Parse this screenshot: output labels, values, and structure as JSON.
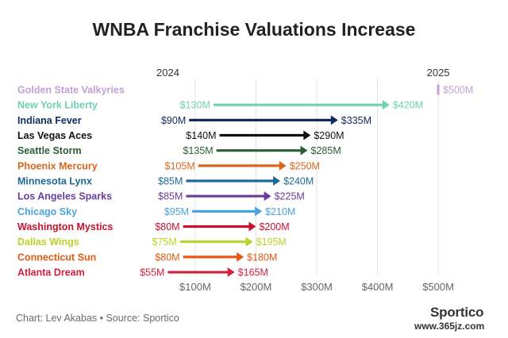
{
  "title": "WNBA Franchise Valuations Increase",
  "credit": "Chart: Lev Akabas • Source: Sportico",
  "brand": "Sportico",
  "watermark": "www.365jz.com",
  "chart_data": {
    "type": "arrow",
    "title": "WNBA Franchise Valuations Increase",
    "x_unit": "$M",
    "xlim": [
      40,
      560
    ],
    "xticks": [
      100,
      200,
      300,
      400,
      500
    ],
    "xtick_labels": [
      "$100M",
      "$200M",
      "$300M",
      "$400M",
      "$500M"
    ],
    "year_labels": [
      {
        "label": "2024",
        "x": 55
      },
      {
        "label": "2025",
        "x": 500
      }
    ],
    "grid": true,
    "series": [
      {
        "team": "Golden State Valkyries",
        "start": null,
        "end": 500,
        "start_label": "",
        "end_label": "$500M",
        "color": "#c39fd6"
      },
      {
        "team": "New York Liberty",
        "start": 130,
        "end": 420,
        "start_label": "$130M",
        "end_label": "$420M",
        "color": "#6fd1b4"
      },
      {
        "team": "Indiana Fever",
        "start": 90,
        "end": 335,
        "start_label": "$90M",
        "end_label": "$335M",
        "color": "#0d2a5c"
      },
      {
        "team": "Las Vegas Aces",
        "start": 140,
        "end": 290,
        "start_label": "$140M",
        "end_label": "$290M",
        "color": "#111111"
      },
      {
        "team": "Seattle Storm",
        "start": 135,
        "end": 285,
        "start_label": "$135M",
        "end_label": "$285M",
        "color": "#2b5e34"
      },
      {
        "team": "Phoenix Mercury",
        "start": 105,
        "end": 250,
        "start_label": "$105M",
        "end_label": "$250M",
        "color": "#d9661e"
      },
      {
        "team": "Minnesota Lynx",
        "start": 85,
        "end": 240,
        "start_label": "$85M",
        "end_label": "$240M",
        "color": "#1b6a9a"
      },
      {
        "team": "Los Angeles Sparks",
        "start": 85,
        "end": 225,
        "start_label": "$85M",
        "end_label": "$225M",
        "color": "#6a3d9a"
      },
      {
        "team": "Chicago Sky",
        "start": 95,
        "end": 210,
        "start_label": "$95M",
        "end_label": "$210M",
        "color": "#4aa3df"
      },
      {
        "team": "Washington Mystics",
        "start": 80,
        "end": 200,
        "start_label": "$80M",
        "end_label": "$200M",
        "color": "#c8102e"
      },
      {
        "team": "Dallas Wings",
        "start": 75,
        "end": 195,
        "start_label": "$75M",
        "end_label": "$195M",
        "color": "#b9d424"
      },
      {
        "team": "Connecticut Sun",
        "start": 80,
        "end": 180,
        "start_label": "$80M",
        "end_label": "$180M",
        "color": "#e35a14"
      },
      {
        "team": "Atlanta Dream",
        "start": 55,
        "end": 165,
        "start_label": "$55M",
        "end_label": "$165M",
        "color": "#d11f3c"
      }
    ]
  }
}
